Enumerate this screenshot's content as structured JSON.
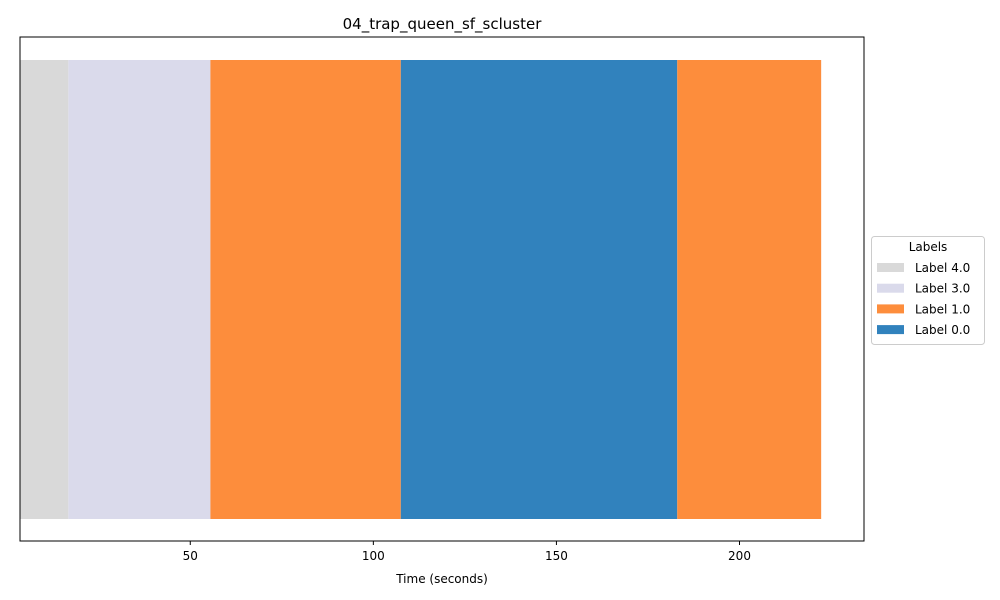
{
  "chart_data": {
    "type": "bar",
    "title": "04_trap_queen_sf_scluster",
    "xlabel": "Time (seconds)",
    "ylabel": "",
    "xlim": [
      3.5,
      234
    ],
    "xticks": [
      50,
      100,
      150,
      200
    ],
    "grid": false,
    "legend": {
      "title": "Labels",
      "placement": "center-right-outside",
      "entries": [
        {
          "label": "Label 4.0",
          "color": "#d9d9d9"
        },
        {
          "label": "Label 3.0",
          "color": "#dadaeb"
        },
        {
          "label": "Label 1.0",
          "color": "#fd8d3c"
        },
        {
          "label": "Label 0.0",
          "color": "#3182bd"
        }
      ]
    },
    "segments": [
      {
        "label": "Label 4.0",
        "start": 3.5,
        "end": 16.7
      },
      {
        "label": "Label 3.0",
        "start": 16.7,
        "end": 55.5
      },
      {
        "label": "Label 1.0",
        "start": 55.5,
        "end": 107.5
      },
      {
        "label": "Label 0.0",
        "start": 107.5,
        "end": 183.0
      },
      {
        "label": "Label 1.0",
        "start": 183.0,
        "end": 222.3
      }
    ]
  }
}
